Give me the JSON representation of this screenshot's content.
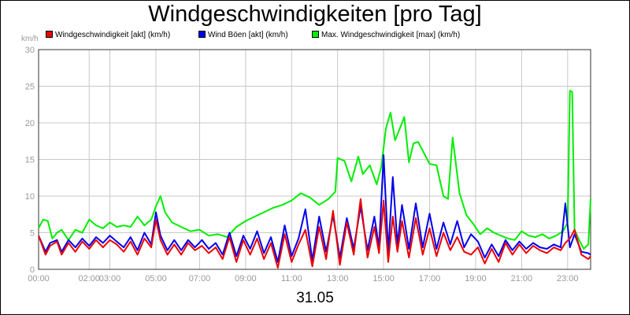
{
  "chart_data": {
    "type": "line",
    "title": "Windgeschwindigkeiten [pro Tag]",
    "ylabel": "km/h",
    "xlabel": "31.05",
    "ylim": [
      0,
      30
    ],
    "xlim": [
      0,
      24
    ],
    "yticks": [
      0,
      5,
      10,
      15,
      20,
      25,
      30
    ],
    "xticks": [
      {
        "pos": 0,
        "label": "00:00"
      },
      {
        "pos": 2.2,
        "label": "02:00"
      },
      {
        "pos": 3.1,
        "label": "03:00"
      },
      {
        "pos": 5.1,
        "label": "05:00"
      },
      {
        "pos": 7.0,
        "label": "07:00"
      },
      {
        "pos": 9.0,
        "label": "09:00"
      },
      {
        "pos": 11.0,
        "label": "11:00"
      },
      {
        "pos": 13.0,
        "label": "13:00"
      },
      {
        "pos": 15.0,
        "label": "15:00"
      },
      {
        "pos": 17.0,
        "label": "17:00"
      },
      {
        "pos": 19.0,
        "label": "19:00"
      },
      {
        "pos": 21.0,
        "label": "21:00"
      },
      {
        "pos": 23.0,
        "label": "23:00"
      }
    ],
    "grid": true,
    "legend_position": "top",
    "series": [
      {
        "name": "Windgeschwindigkeit [akt] (km/h)",
        "color": "#ee0000",
        "x": [
          0,
          0.3,
          0.5,
          0.8,
          1.0,
          1.3,
          1.6,
          1.9,
          2.2,
          2.5,
          2.8,
          3.1,
          3.4,
          3.7,
          4.0,
          4.3,
          4.6,
          4.9,
          5.1,
          5.3,
          5.6,
          5.9,
          6.2,
          6.5,
          6.8,
          7.1,
          7.4,
          7.7,
          8.0,
          8.3,
          8.6,
          8.9,
          9.2,
          9.5,
          9.8,
          10.1,
          10.4,
          10.7,
          11.0,
          11.3,
          11.6,
          11.9,
          12.2,
          12.5,
          12.8,
          13.1,
          13.4,
          13.7,
          14.0,
          14.3,
          14.6,
          14.8,
          15.0,
          15.2,
          15.4,
          15.6,
          15.8,
          16.1,
          16.4,
          16.7,
          17.0,
          17.3,
          17.6,
          17.9,
          18.2,
          18.5,
          18.8,
          19.1,
          19.4,
          19.7,
          20.0,
          20.3,
          20.6,
          20.9,
          21.2,
          21.5,
          21.8,
          22.1,
          22.4,
          22.7,
          22.9,
          23.1,
          23.3,
          23.6,
          23.9,
          24.0
        ],
        "values": [
          4.6,
          2.0,
          3.2,
          3.8,
          2.0,
          3.6,
          2.4,
          3.8,
          2.8,
          4.0,
          3.0,
          4.0,
          3.4,
          2.4,
          3.8,
          2.0,
          4.2,
          3.0,
          6.8,
          4.0,
          2.0,
          3.4,
          2.0,
          3.6,
          2.6,
          3.2,
          2.2,
          3.0,
          1.4,
          4.4,
          1.0,
          4.0,
          2.0,
          4.2,
          1.4,
          3.6,
          0.2,
          4.8,
          1.0,
          3.4,
          5.4,
          0.4,
          5.8,
          1.4,
          8.0,
          0.6,
          6.4,
          2.0,
          9.6,
          1.6,
          5.8,
          2.2,
          9.4,
          1.0,
          7.2,
          2.4,
          6.6,
          1.6,
          7.0,
          2.0,
          5.6,
          1.8,
          5.0,
          2.6,
          4.4,
          2.4,
          2.0,
          3.0,
          0.8,
          2.8,
          1.0,
          3.6,
          2.0,
          3.4,
          2.2,
          3.2,
          2.6,
          2.2,
          3.0,
          2.6,
          3.6,
          4.2,
          5.4,
          2.0,
          1.4,
          1.8
        ]
      },
      {
        "name": "Wind Böen [akt] (km/h)",
        "color": "#0000ee",
        "x": [
          0,
          0.3,
          0.5,
          0.8,
          1.0,
          1.3,
          1.6,
          1.9,
          2.2,
          2.5,
          2.8,
          3.1,
          3.4,
          3.7,
          4.0,
          4.3,
          4.6,
          4.9,
          5.1,
          5.3,
          5.6,
          5.9,
          6.2,
          6.5,
          6.8,
          7.1,
          7.4,
          7.7,
          8.0,
          8.3,
          8.6,
          8.9,
          9.2,
          9.5,
          9.8,
          10.1,
          10.4,
          10.7,
          11.0,
          11.3,
          11.6,
          11.9,
          12.2,
          12.5,
          12.8,
          13.1,
          13.4,
          13.7,
          14.0,
          14.3,
          14.6,
          14.8,
          15.0,
          15.2,
          15.4,
          15.6,
          15.8,
          16.1,
          16.4,
          16.7,
          17.0,
          17.3,
          17.6,
          17.9,
          18.2,
          18.5,
          18.8,
          19.1,
          19.4,
          19.7,
          20.0,
          20.3,
          20.6,
          20.9,
          21.2,
          21.5,
          21.8,
          22.1,
          22.4,
          22.7,
          22.9,
          23.1,
          23.3,
          23.6,
          23.9,
          24.0
        ],
        "values": [
          4.6,
          2.4,
          3.6,
          4.0,
          2.4,
          4.0,
          3.0,
          4.2,
          3.2,
          4.4,
          3.6,
          4.6,
          3.8,
          3.0,
          4.4,
          2.6,
          5.0,
          3.4,
          7.8,
          4.6,
          2.6,
          4.0,
          2.6,
          4.0,
          3.0,
          4.0,
          2.8,
          3.6,
          2.0,
          5.0,
          1.8,
          4.6,
          2.8,
          5.2,
          2.2,
          4.4,
          1.0,
          6.0,
          1.8,
          4.2,
          8.2,
          1.2,
          7.2,
          2.4,
          7.4,
          1.6,
          7.0,
          2.8,
          8.6,
          2.6,
          7.2,
          3.0,
          15.6,
          2.4,
          12.6,
          3.4,
          8.8,
          2.8,
          9.0,
          3.0,
          7.6,
          2.8,
          6.4,
          3.4,
          6.6,
          3.0,
          4.8,
          3.8,
          1.6,
          3.4,
          1.8,
          4.0,
          2.6,
          3.8,
          2.8,
          3.6,
          3.0,
          2.8,
          3.4,
          3.0,
          9.0,
          3.0,
          4.8,
          2.4,
          2.2,
          2.0
        ]
      },
      {
        "name": "Max. Windgeschwindigkeit [max] (km/h)",
        "color": "#00ee00",
        "x": [
          0,
          0.2,
          0.4,
          0.6,
          0.8,
          1.0,
          1.3,
          1.6,
          1.9,
          2.2,
          2.5,
          2.8,
          3.1,
          3.4,
          3.7,
          4.0,
          4.3,
          4.6,
          4.9,
          5.1,
          5.3,
          5.5,
          5.8,
          6.2,
          6.6,
          7.0,
          7.4,
          7.8,
          8.2,
          8.6,
          9.0,
          9.4,
          9.8,
          10.2,
          10.6,
          11.0,
          11.4,
          11.8,
          12.2,
          12.6,
          12.9,
          13.0,
          13.3,
          13.6,
          13.9,
          14.1,
          14.4,
          14.7,
          14.9,
          15.1,
          15.3,
          15.5,
          15.7,
          15.9,
          16.1,
          16.3,
          16.5,
          16.8,
          17.0,
          17.3,
          17.6,
          17.8,
          18.0,
          18.3,
          18.6,
          18.9,
          19.2,
          19.5,
          19.8,
          20.1,
          20.4,
          20.7,
          21.0,
          21.3,
          21.6,
          21.9,
          22.2,
          22.5,
          22.8,
          23.0,
          23.1,
          23.2,
          23.3,
          23.5,
          23.7,
          23.9,
          24.0
        ],
        "values": [
          5.6,
          6.8,
          6.6,
          4.2,
          5.0,
          5.4,
          4.0,
          5.4,
          5.0,
          6.8,
          6.0,
          5.6,
          6.4,
          5.8,
          6.0,
          5.8,
          7.2,
          6.0,
          6.8,
          8.6,
          10.0,
          7.8,
          6.4,
          5.8,
          5.2,
          5.4,
          4.6,
          4.8,
          4.4,
          5.8,
          6.6,
          7.2,
          7.8,
          8.4,
          8.8,
          9.4,
          10.4,
          9.8,
          8.8,
          9.6,
          10.6,
          15.2,
          14.8,
          12.0,
          15.4,
          13.0,
          14.2,
          11.6,
          14.0,
          19.2,
          21.4,
          17.6,
          19.2,
          20.8,
          14.6,
          17.2,
          17.4,
          15.6,
          14.4,
          14.2,
          10.0,
          9.6,
          18.0,
          10.4,
          7.4,
          6.2,
          4.8,
          5.6,
          5.0,
          4.6,
          4.2,
          4.0,
          5.2,
          4.6,
          4.4,
          4.8,
          4.2,
          4.6,
          5.2,
          6.4,
          24.4,
          24.2,
          5.4,
          4.0,
          2.8,
          3.4,
          9.6
        ]
      }
    ]
  }
}
